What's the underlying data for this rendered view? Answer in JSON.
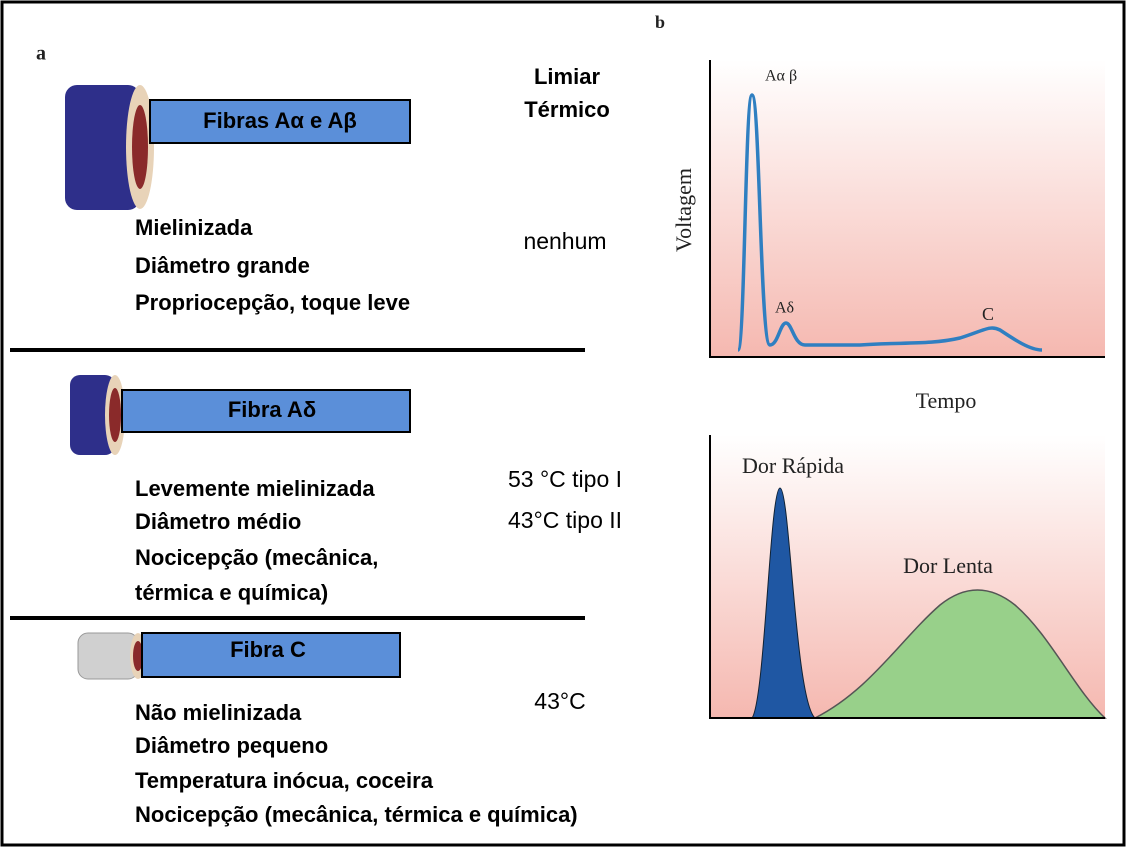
{
  "panel_a": {
    "label": "a",
    "header": [
      "Limiar",
      "Térmico"
    ],
    "fibers": [
      {
        "name": "Fibras Aα e Aβ",
        "properties": [
          "Mielinizada",
          "Diâmetro grande",
          "Propriocepção, toque leve"
        ],
        "threshold": [
          "nenhum"
        ]
      },
      {
        "name": "Fibra Aδ",
        "properties": [
          "Levemente mielinizada",
          "Diâmetro médio",
          "Nocicepção (mecânica,",
          "térmica e química)"
        ],
        "threshold": [
          "53 °C tipo I",
          "43°C tipo II"
        ]
      },
      {
        "name": "Fibra C",
        "properties": [
          "Não mielinizada",
          "Diâmetro pequeno",
          "Temperatura inócua, coceira",
          "Nocicepção (mecânica, térmica e química)"
        ],
        "threshold": [
          "43°C"
        ]
      }
    ]
  },
  "panel_b": {
    "label": "b",
    "top": {
      "y_label": "Voltagem",
      "x_label": "Tempo",
      "peaks": [
        "Aα β",
        "Aδ",
        "C"
      ]
    },
    "bottom": {
      "peaks": [
        "Dor Rápida",
        "Dor Lenta"
      ]
    }
  }
}
